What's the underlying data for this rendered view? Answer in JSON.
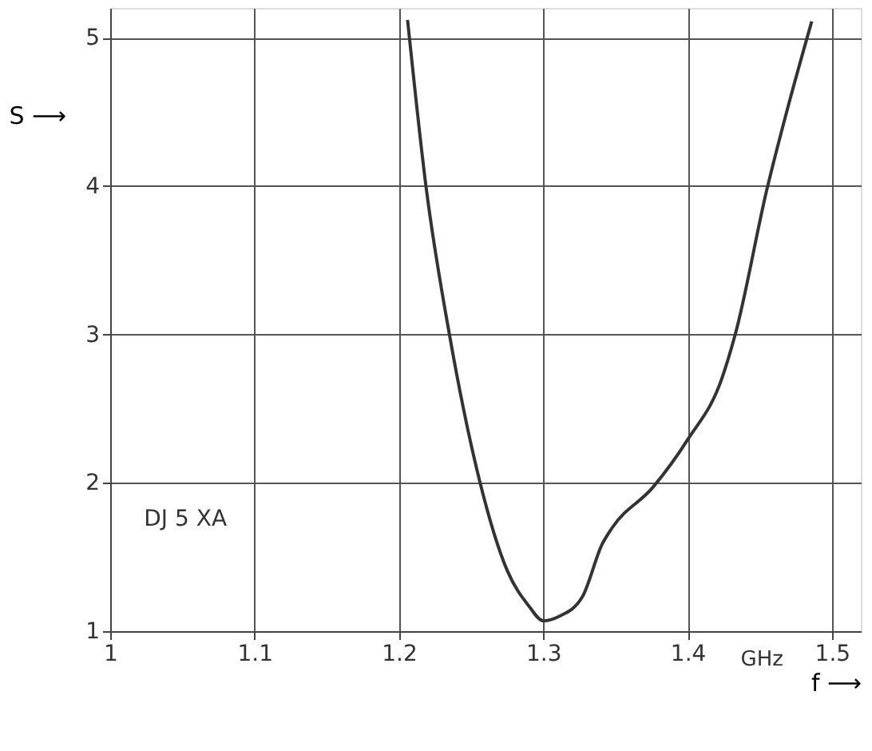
{
  "chart_data": {
    "type": "line",
    "xlabel": "f ⟶",
    "ylabel": "S ⟶",
    "x": [
      1.206,
      1.219,
      1.235,
      1.256,
      1.275,
      1.29,
      1.3,
      1.311,
      1.327,
      1.341,
      1.348,
      1.376,
      1.4,
      1.424,
      1.433,
      1.455,
      1.47,
      1.486
    ],
    "series": [
      {
        "color": "#333333",
        "values": [
          5.12,
          3.98,
          3.0,
          2.01,
          1.41,
          1.17,
          1.07,
          1.1,
          1.23,
          1.59,
          1.7,
          1.97,
          2.29,
          2.71,
          3.0,
          3.98,
          4.55,
          5.11
        ]
      }
    ],
    "xlim": [
      1,
      1.52
    ],
    "ylim": [
      1,
      5.2
    ],
    "xticks": [
      1,
      1.1,
      1.2,
      1.3,
      1.4,
      1.5
    ],
    "yticks": [
      1,
      2,
      3,
      4,
      5
    ],
    "grid": true,
    "marker": "none",
    "line_style": "solid",
    "annotations": [
      "DJ 5 XA",
      "GHz"
    ]
  }
}
